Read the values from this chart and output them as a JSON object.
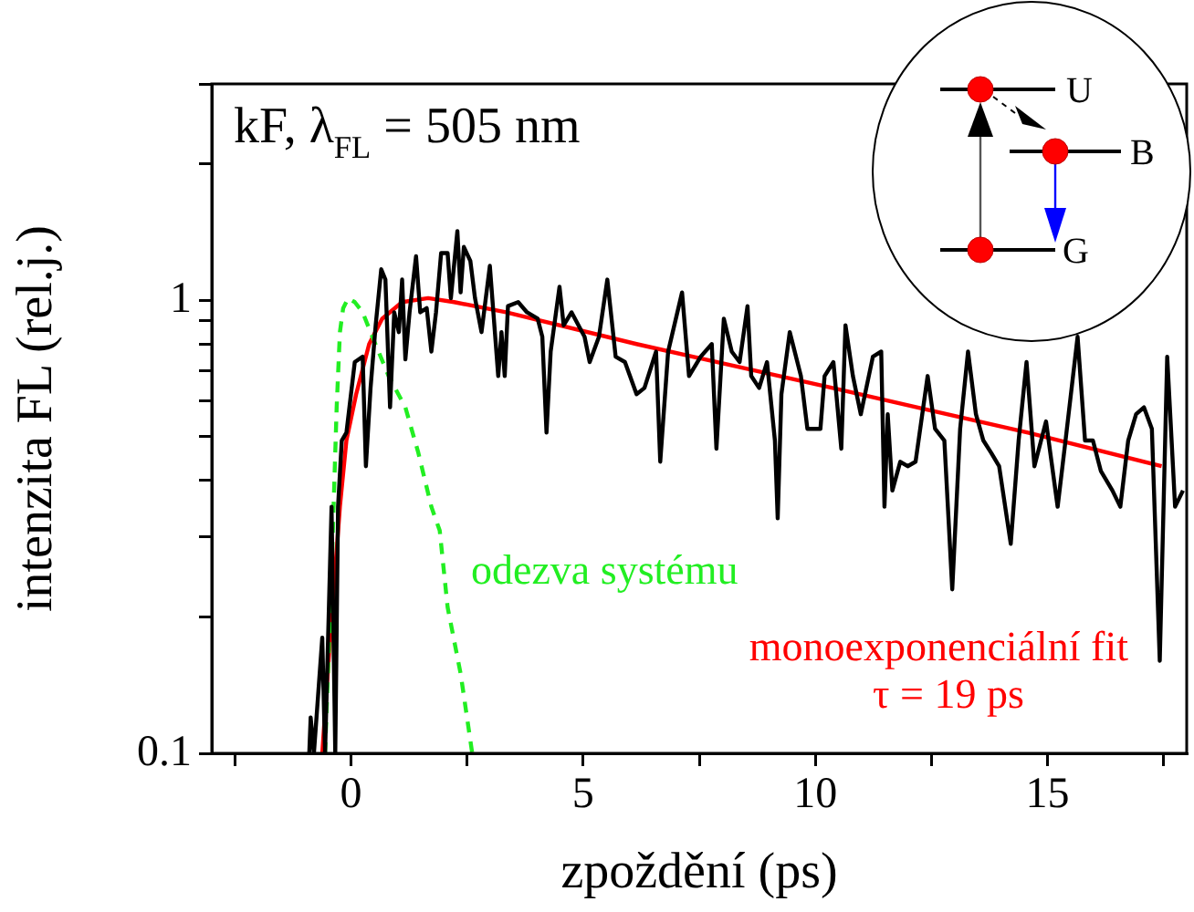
{
  "chart_data": {
    "type": "line",
    "title": "kF, λ$_{FL}$ = 505 nm",
    "xlabel": "zpoždění (ps)",
    "ylabel": "intenzita FL (rel.j.)",
    "annotations": [
      "τ = 19 ps",
      "U",
      "B",
      "G"
    ],
    "log": "y",
    "grid": false,
    "legend": false,
    "marker": "none",
    "xlim": [
      -3,
      18
    ],
    "xticks": [
      {
        "value": -2.5,
        "label": null
      },
      0,
      {
        "value": 2.5,
        "label": null
      },
      5,
      {
        "value": 7.5,
        "label": null
      },
      10,
      {
        "value": 12.5,
        "label": null
      },
      15,
      {
        "value": 17.5,
        "label": null
      }
    ],
    "ylim": [
      0.1,
      3
    ],
    "yticks": [
      0.1,
      {
        "value": 0.2,
        "label": null
      },
      {
        "value": 0.3,
        "label": null
      },
      {
        "value": 0.4,
        "label": null
      },
      {
        "value": 0.5,
        "label": null
      },
      {
        "value": 0.6,
        "label": null
      },
      {
        "value": 0.7,
        "label": null
      },
      {
        "value": 0.8,
        "label": null
      },
      {
        "value": 0.9,
        "label": null
      },
      1,
      {
        "value": 2,
        "label": null
      },
      {
        "value": 3,
        "label": null
      }
    ],
    "series": [
      {
        "color": "#000000",
        "line_style": "solid",
        "x": [
          -0.9,
          -0.87,
          -0.8,
          -0.62,
          -0.56,
          -0.42,
          -0.34,
          -0.28,
          -0.2,
          -0.1,
          0.08,
          0.25,
          0.32,
          0.42,
          0.53,
          0.65,
          0.74,
          0.84,
          0.93,
          1.03,
          1.1,
          1.17,
          1.26,
          1.4,
          1.49,
          1.63,
          1.73,
          1.83,
          1.94,
          2.08,
          2.15,
          2.29,
          2.36,
          2.43,
          2.57,
          2.67,
          2.81,
          2.99,
          3.17,
          3.24,
          3.31,
          3.38,
          3.6,
          3.79,
          4.02,
          4.12,
          4.21,
          4.3,
          4.49,
          4.58,
          4.75,
          5.03,
          5.14,
          5.34,
          5.52,
          5.7,
          5.9,
          6.15,
          6.32,
          6.57,
          6.66,
          6.83,
          7.13,
          7.28,
          7.53,
          7.77,
          7.87,
          8.03,
          8.2,
          8.37,
          8.54,
          8.62,
          8.79,
          8.96,
          9.13,
          9.19,
          9.27,
          9.45,
          9.69,
          9.83,
          10.11,
          10.2,
          10.39,
          10.56,
          10.65,
          10.81,
          10.98,
          11.24,
          11.42,
          11.49,
          11.56,
          11.66,
          11.83,
          11.99,
          12.16,
          12.42,
          12.58,
          12.78,
          12.95,
          13.12,
          13.29,
          13.46,
          13.62,
          13.79,
          13.96,
          14.21,
          14.38,
          14.55,
          14.72,
          14.97,
          15.22,
          15.39,
          15.65,
          15.81,
          15.98,
          16.15,
          16.4,
          16.57,
          16.74,
          16.91,
          17.08,
          17.25,
          17.42,
          17.58,
          17.75,
          17.92
        ],
        "values": [
          0.1,
          0.12,
          0.1,
          0.18,
          0.1,
          0.35,
          0.1,
          0.35,
          0.49,
          0.51,
          0.73,
          0.75,
          0.43,
          0.64,
          0.88,
          1.17,
          1.11,
          0.58,
          0.94,
          0.85,
          1.11,
          0.74,
          0.94,
          1.25,
          0.94,
          0.96,
          0.77,
          0.94,
          1.27,
          1.27,
          1.01,
          1.42,
          1.04,
          1.31,
          1.22,
          1.01,
          0.85,
          1.19,
          0.68,
          0.85,
          0.68,
          0.97,
          0.99,
          0.94,
          0.91,
          0.83,
          0.51,
          0.77,
          1.07,
          0.88,
          0.94,
          0.83,
          0.73,
          0.83,
          1.11,
          0.75,
          0.73,
          0.62,
          0.64,
          0.77,
          0.44,
          0.77,
          1.04,
          0.68,
          0.75,
          0.8,
          0.47,
          0.91,
          0.77,
          0.73,
          0.97,
          0.68,
          0.64,
          0.73,
          0.49,
          0.33,
          0.62,
          0.85,
          0.68,
          0.52,
          0.52,
          0.68,
          0.73,
          0.47,
          0.88,
          0.68,
          0.56,
          0.75,
          0.77,
          0.35,
          0.56,
          0.38,
          0.44,
          0.43,
          0.44,
          0.68,
          0.52,
          0.49,
          0.23,
          0.52,
          0.77,
          0.56,
          0.49,
          0.46,
          0.43,
          0.29,
          0.49,
          0.73,
          0.43,
          0.54,
          0.35,
          0.49,
          0.83,
          0.49,
          0.49,
          0.42,
          0.38,
          0.35,
          0.49,
          0.56,
          0.58,
          0.52,
          0.16,
          0.75,
          0.35,
          0.38
        ]
      },
      {
        "name": "odezva systému",
        "color": "#22ee22",
        "line_style": "dashed",
        "x": [
          -0.56,
          -0.42,
          -0.31,
          -0.24,
          -0.17,
          -0.06,
          0.08,
          0.25,
          0.46,
          0.81,
          1.17,
          1.45,
          1.73,
          1.91,
          2.08,
          2.36,
          2.61
        ],
        "values": [
          0.1,
          0.25,
          0.58,
          0.85,
          0.96,
          1.01,
          0.99,
          0.94,
          0.83,
          0.68,
          0.58,
          0.46,
          0.35,
          0.31,
          0.21,
          0.15,
          0.1
        ]
      },
      {
        "name": "monoexponenciální fit",
        "color": "#ff0000",
        "line_style": "solid",
        "x": [
          -0.62,
          -0.45,
          -0.24,
          -0.1,
          0.11,
          0.39,
          0.67,
          1.1,
          1.66,
          2.22,
          3.34,
          6.15,
          10.37,
          14.58,
          17.46
        ],
        "values": [
          0.1,
          0.18,
          0.35,
          0.49,
          0.62,
          0.8,
          0.91,
          0.99,
          1.01,
          0.99,
          0.94,
          0.8,
          0.64,
          0.51,
          0.43
        ]
      }
    ]
  }
}
